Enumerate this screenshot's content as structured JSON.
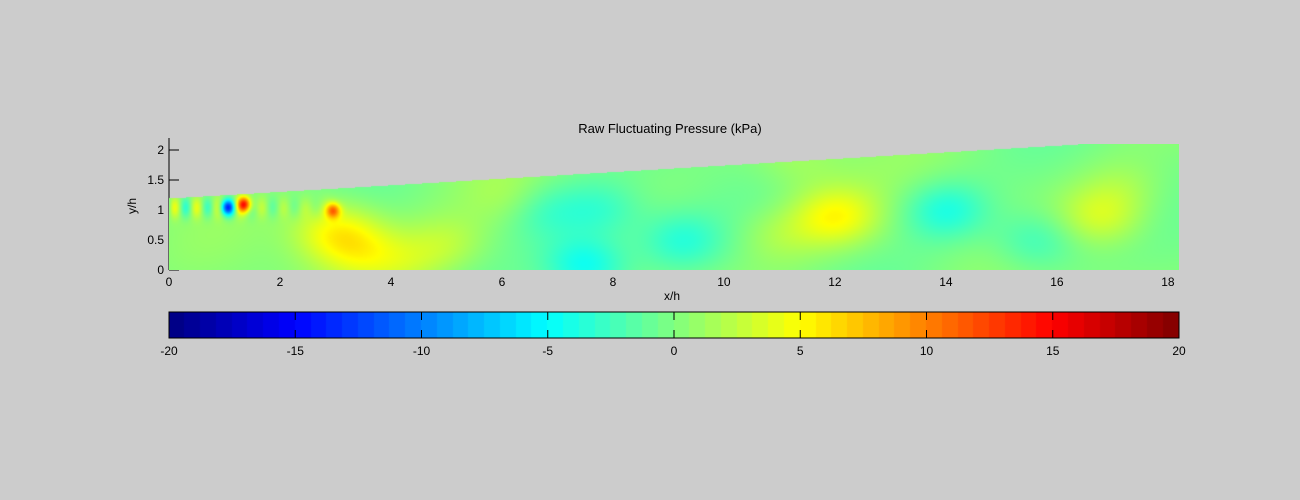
{
  "chart_data": [
    {
      "type": "heatmap",
      "title": "Raw Fluctuating Pressure (kPa)",
      "xlabel": "x/h",
      "ylabel": "y/h",
      "xlim": [
        0,
        18.2
      ],
      "ylim": [
        0,
        2.2
      ],
      "x_ticks": [
        0,
        2,
        4,
        6,
        8,
        10,
        12,
        14,
        16,
        18
      ],
      "y_ticks": [
        0,
        0.5,
        1,
        1.5,
        2
      ],
      "domain_upper_boundary": {
        "x": [
          0,
          18.2
        ],
        "y": [
          1.2,
          2.2
        ]
      },
      "colormap": "jet",
      "clim": [
        -20,
        20
      ],
      "field_features": [
        {
          "x": 1.35,
          "y": 1.1,
          "value": 13
        },
        {
          "x": 1.05,
          "y": 1.05,
          "value": -12
        },
        {
          "x": 2.95,
          "y": 1.0,
          "value": 9
        },
        {
          "x": 3.0,
          "y": 0.65,
          "value": 5
        },
        {
          "x": 3.5,
          "y": 0.3,
          "value": 3
        },
        {
          "x": 4.3,
          "y": 0.1,
          "value": 2
        },
        {
          "x": 5.0,
          "y": 0.45,
          "value": 2.5
        },
        {
          "x": 6.2,
          "y": 1.15,
          "value": 2
        },
        {
          "x": 6.7,
          "y": 1.0,
          "value": -3
        },
        {
          "x": 7.5,
          "y": 0.1,
          "value": -5
        },
        {
          "x": 7.8,
          "y": 1.0,
          "value": -3
        },
        {
          "x": 9.2,
          "y": 0.5,
          "value": -3.5
        },
        {
          "x": 11.0,
          "y": 0.6,
          "value": 2
        },
        {
          "x": 11.3,
          "y": 1.8,
          "value": 1.5
        },
        {
          "x": 12.0,
          "y": 0.9,
          "value": 5
        },
        {
          "x": 14.0,
          "y": 1.0,
          "value": -4
        },
        {
          "x": 15.6,
          "y": 0.5,
          "value": -3
        },
        {
          "x": 16.8,
          "y": 0.9,
          "value": 3.5
        },
        {
          "x": 17.2,
          "y": 1.4,
          "value": 1.5
        }
      ]
    },
    {
      "type": "colorbar",
      "colormap": "jet",
      "range": [
        -20,
        20
      ],
      "ticks": [
        -20,
        -15,
        -10,
        -5,
        0,
        5,
        10,
        15,
        20
      ],
      "tick_labels": [
        "-20",
        "-15",
        "-10",
        "-5",
        "0",
        "5",
        "10",
        "15",
        "20"
      ]
    }
  ]
}
